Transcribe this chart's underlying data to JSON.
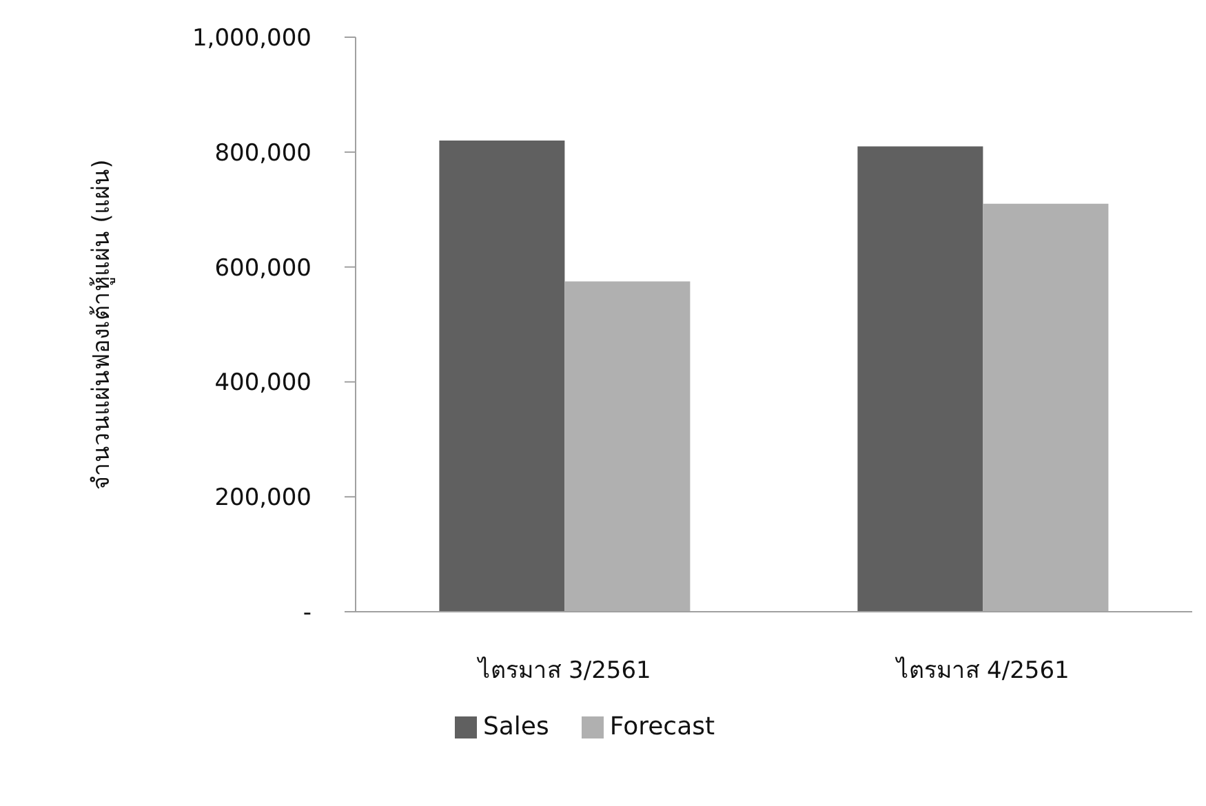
{
  "chart_data": {
    "type": "bar",
    "ylabel": "จำนวนแผ่นฟองเต้าหู้แผ่น (แผ่น)",
    "categories": [
      "ไตรมาส 3/2561",
      "ไตรมาส 4/2561"
    ],
    "series": [
      {
        "name": "Sales",
        "color": "#606060",
        "values": [
          820000,
          810000
        ]
      },
      {
        "name": "Forecast",
        "color": "#b0b0b0",
        "values": [
          575000,
          710000
        ]
      }
    ],
    "ylim": [
      0,
      1000000
    ],
    "yticks": [
      {
        "value": 0,
        "label": "-"
      },
      {
        "value": 200000,
        "label": "200,000"
      },
      {
        "value": 400000,
        "label": "400,000"
      },
      {
        "value": 600000,
        "label": "600,000"
      },
      {
        "value": 800000,
        "label": "800,000"
      },
      {
        "value": 1000000,
        "label": "1,000,000"
      }
    ],
    "grid": false,
    "legend": "bottom"
  }
}
